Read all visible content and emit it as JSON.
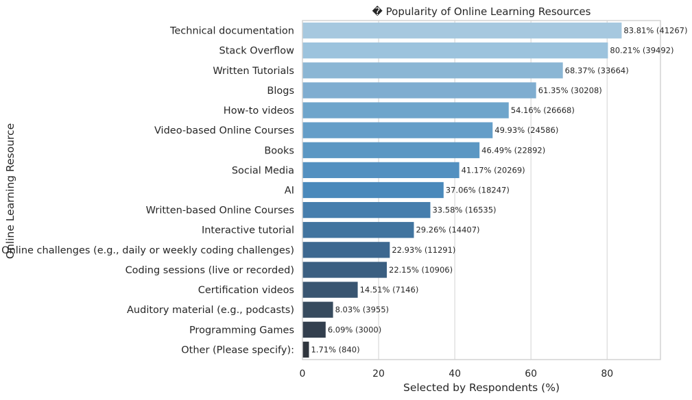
{
  "chart_data": {
    "type": "bar",
    "orientation": "horizontal",
    "title": "� Popularity of Online Learning Resources",
    "xlabel": "Selected by Respondents (%)",
    "ylabel": "Online Learning Resource",
    "xlim": [
      0,
      94
    ],
    "xticks": [
      0,
      20,
      40,
      60,
      80
    ],
    "grid": "vertical",
    "legend": "none",
    "categories": [
      "Technical documentation",
      "Stack Overflow",
      "Written Tutorials",
      "Blogs",
      "How-to videos",
      "Video-based Online Courses",
      "Books",
      "Social Media",
      "AI",
      "Written-based Online Courses",
      "Interactive tutorial",
      "Online challenges (e.g., daily or weekly coding challenges)",
      "Coding sessions (live or recorded)",
      "Certification videos",
      "Auditory material (e.g., podcasts)",
      "Programming Games",
      "Other (Please specify):"
    ],
    "values": [
      83.81,
      80.21,
      68.37,
      61.35,
      54.16,
      49.93,
      46.49,
      41.17,
      37.06,
      33.58,
      29.26,
      22.93,
      22.15,
      14.51,
      8.03,
      6.09,
      1.71
    ],
    "counts": [
      41267,
      39492,
      33664,
      30208,
      26668,
      24586,
      22892,
      20269,
      18247,
      16535,
      14407,
      11291,
      10906,
      7146,
      3955,
      3000,
      840
    ],
    "data_labels": [
      "83.81% (41267)",
      "80.21% (39492)",
      "68.37% (33664)",
      "61.35% (30208)",
      "54.16% (26668)",
      "49.93% (24586)",
      "46.49% (22892)",
      "41.17% (20269)",
      "37.06% (18247)",
      "33.58% (16535)",
      "29.26% (14407)",
      "22.93% (11291)",
      "22.15% (10906)",
      "14.51% (7146)",
      "8.03% (3955)",
      "6.09% (3000)",
      "1.71% (840)"
    ],
    "colors": [
      "#a6c8df",
      "#9cc3dd",
      "#8bb6d4",
      "#7fadd0",
      "#6ea5cb",
      "#659ec8",
      "#5b97c3",
      "#5390c0",
      "#4a89bb",
      "#467ead",
      "#41749f",
      "#3d6890",
      "#3b5f81",
      "#395571",
      "#374b5e",
      "#333f4e",
      "#2f353d"
    ]
  }
}
